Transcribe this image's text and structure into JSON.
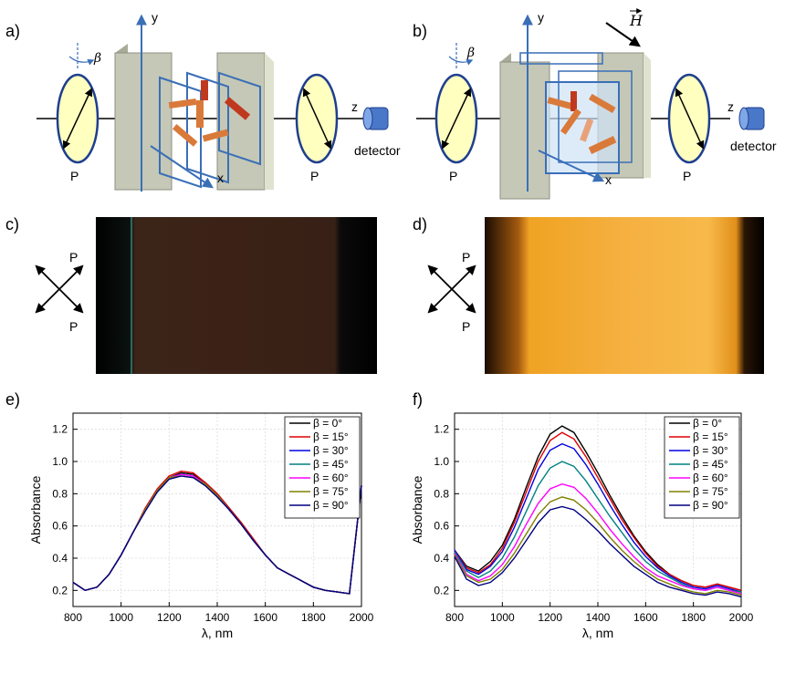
{
  "panels": {
    "a": {
      "label": "a)",
      "y_axis": "y",
      "z_axis": "z",
      "x_axis": "x",
      "beta": "β",
      "polarizer_left": "P",
      "polarizer_right": "P",
      "detector": "detector"
    },
    "b": {
      "label": "b)",
      "y_axis": "y",
      "z_axis": "z",
      "x_axis": "x",
      "beta": "β",
      "field": "H",
      "polarizer_left": "P",
      "polarizer_right": "P",
      "detector": "detector"
    },
    "c": {
      "label": "c)",
      "pol_top": "P",
      "pol_bottom": "P"
    },
    "d": {
      "label": "d)",
      "pol_top": "P",
      "pol_bottom": "P"
    },
    "e": {
      "label": "e)"
    },
    "f": {
      "label": "f)"
    }
  },
  "colors": {
    "polarizer_fill": "#ffffc0",
    "polarizer_stroke": "#1f3f8f",
    "axis_blue": "#3a6fb8",
    "rod": "#d97a3a",
    "rod_dark": "#c0391f",
    "plate": "#c5c8b6",
    "detector": "#4a78c8",
    "photo_c": "#3a1f14",
    "photo_d": "#f0a020"
  },
  "chart_data": [
    {
      "panel": "e",
      "type": "line",
      "xlabel": "λ, nm",
      "ylabel": "Absorbance",
      "xlim": [
        800,
        2000
      ],
      "ylim": [
        0.1,
        1.3
      ],
      "xticks": [
        800,
        1000,
        1200,
        1400,
        1600,
        1800,
        2000
      ],
      "yticks": [
        0.2,
        0.4,
        0.6,
        0.8,
        1.0,
        1.2
      ],
      "ytick_labels": [
        "0.2",
        "0.4",
        "0.6",
        "0.8",
        "1.0",
        "1.2"
      ],
      "grid": true,
      "legend_position": "top-right",
      "x": [
        800,
        850,
        900,
        950,
        1000,
        1050,
        1100,
        1150,
        1200,
        1250,
        1300,
        1350,
        1400,
        1450,
        1500,
        1550,
        1600,
        1650,
        1700,
        1750,
        1800,
        1850,
        1900,
        1950,
        2000
      ],
      "series": [
        {
          "name": "β = 0°",
          "color": "#000000",
          "values": [
            0.25,
            0.2,
            0.22,
            0.3,
            0.42,
            0.56,
            0.7,
            0.82,
            0.9,
            0.93,
            0.92,
            0.87,
            0.8,
            0.71,
            0.62,
            0.52,
            0.42,
            0.34,
            0.3,
            0.26,
            0.22,
            0.2,
            0.19,
            0.18,
            0.85
          ]
        },
        {
          "name": "β = 15°",
          "color": "#e00000",
          "values": [
            0.25,
            0.2,
            0.22,
            0.3,
            0.42,
            0.56,
            0.71,
            0.83,
            0.91,
            0.94,
            0.93,
            0.87,
            0.8,
            0.71,
            0.62,
            0.52,
            0.42,
            0.34,
            0.3,
            0.26,
            0.22,
            0.2,
            0.19,
            0.18,
            0.85
          ]
        },
        {
          "name": "β = 30°",
          "color": "#0000e0",
          "values": [
            0.25,
            0.2,
            0.22,
            0.3,
            0.42,
            0.56,
            0.7,
            0.82,
            0.9,
            0.92,
            0.91,
            0.86,
            0.79,
            0.7,
            0.61,
            0.51,
            0.42,
            0.34,
            0.3,
            0.26,
            0.22,
            0.2,
            0.19,
            0.18,
            0.85
          ]
        },
        {
          "name": "β = 45°",
          "color": "#008080",
          "values": [
            0.25,
            0.2,
            0.22,
            0.3,
            0.42,
            0.56,
            0.7,
            0.82,
            0.9,
            0.92,
            0.91,
            0.86,
            0.79,
            0.7,
            0.61,
            0.51,
            0.42,
            0.34,
            0.3,
            0.26,
            0.22,
            0.2,
            0.19,
            0.18,
            0.85
          ]
        },
        {
          "name": "β = 60°",
          "color": "#ff00ff",
          "values": [
            0.25,
            0.2,
            0.22,
            0.3,
            0.42,
            0.56,
            0.7,
            0.82,
            0.9,
            0.92,
            0.91,
            0.86,
            0.79,
            0.7,
            0.61,
            0.51,
            0.42,
            0.34,
            0.3,
            0.26,
            0.22,
            0.2,
            0.19,
            0.18,
            0.85
          ]
        },
        {
          "name": "β = 75°",
          "color": "#808000",
          "values": [
            0.25,
            0.2,
            0.22,
            0.3,
            0.42,
            0.56,
            0.7,
            0.82,
            0.9,
            0.91,
            0.9,
            0.86,
            0.79,
            0.7,
            0.61,
            0.51,
            0.42,
            0.34,
            0.3,
            0.26,
            0.22,
            0.2,
            0.19,
            0.18,
            0.85
          ]
        },
        {
          "name": "β = 90°",
          "color": "#000080",
          "values": [
            0.25,
            0.2,
            0.22,
            0.3,
            0.42,
            0.56,
            0.69,
            0.81,
            0.89,
            0.91,
            0.9,
            0.85,
            0.78,
            0.7,
            0.61,
            0.51,
            0.42,
            0.34,
            0.3,
            0.26,
            0.22,
            0.2,
            0.19,
            0.18,
            0.85
          ]
        }
      ]
    },
    {
      "panel": "f",
      "type": "line",
      "xlabel": "λ, nm",
      "ylabel": "Absorbance",
      "xlim": [
        800,
        2000
      ],
      "ylim": [
        0.1,
        1.3
      ],
      "xticks": [
        800,
        1000,
        1200,
        1400,
        1600,
        1800,
        2000
      ],
      "yticks": [
        0.2,
        0.4,
        0.6,
        0.8,
        1.0,
        1.2
      ],
      "ytick_labels": [
        "0.2",
        "0.4",
        "0.6",
        "0.8",
        "1.0",
        "1.2"
      ],
      "grid": true,
      "legend_position": "top-right",
      "x": [
        800,
        850,
        900,
        950,
        1000,
        1050,
        1100,
        1150,
        1200,
        1250,
        1300,
        1350,
        1400,
        1450,
        1500,
        1550,
        1600,
        1650,
        1700,
        1750,
        1800,
        1850,
        1900,
        1950,
        2000
      ],
      "series": [
        {
          "name": "β = 0°",
          "color": "#000000",
          "values": [
            0.45,
            0.35,
            0.32,
            0.38,
            0.48,
            0.64,
            0.84,
            1.03,
            1.17,
            1.22,
            1.18,
            1.06,
            0.93,
            0.79,
            0.66,
            0.54,
            0.44,
            0.36,
            0.3,
            0.26,
            0.23,
            0.22,
            0.24,
            0.22,
            0.2
          ]
        },
        {
          "name": "β = 15°",
          "color": "#e00000",
          "values": [
            0.45,
            0.34,
            0.31,
            0.36,
            0.46,
            0.62,
            0.81,
            1.0,
            1.13,
            1.18,
            1.14,
            1.03,
            0.9,
            0.77,
            0.64,
            0.53,
            0.43,
            0.35,
            0.3,
            0.26,
            0.23,
            0.22,
            0.24,
            0.22,
            0.2
          ]
        },
        {
          "name": "β = 30°",
          "color": "#0000e0",
          "values": [
            0.45,
            0.33,
            0.3,
            0.35,
            0.44,
            0.59,
            0.77,
            0.95,
            1.07,
            1.11,
            1.08,
            0.98,
            0.86,
            0.73,
            0.61,
            0.5,
            0.41,
            0.34,
            0.29,
            0.25,
            0.22,
            0.21,
            0.23,
            0.21,
            0.19
          ]
        },
        {
          "name": "β = 45°",
          "color": "#008080",
          "values": [
            0.44,
            0.32,
            0.28,
            0.32,
            0.4,
            0.53,
            0.69,
            0.85,
            0.96,
            1.0,
            0.97,
            0.88,
            0.77,
            0.66,
            0.56,
            0.46,
            0.38,
            0.32,
            0.28,
            0.24,
            0.21,
            0.2,
            0.22,
            0.2,
            0.19
          ]
        },
        {
          "name": "β = 60°",
          "color": "#ff00ff",
          "values": [
            0.43,
            0.3,
            0.26,
            0.29,
            0.36,
            0.47,
            0.61,
            0.74,
            0.83,
            0.86,
            0.84,
            0.77,
            0.68,
            0.58,
            0.49,
            0.41,
            0.34,
            0.29,
            0.26,
            0.23,
            0.21,
            0.2,
            0.22,
            0.2,
            0.18
          ]
        },
        {
          "name": "β = 75°",
          "color": "#808000",
          "values": [
            0.42,
            0.29,
            0.25,
            0.27,
            0.33,
            0.43,
            0.55,
            0.67,
            0.75,
            0.78,
            0.76,
            0.7,
            0.62,
            0.53,
            0.45,
            0.38,
            0.32,
            0.27,
            0.24,
            0.21,
            0.19,
            0.18,
            0.2,
            0.19,
            0.17
          ]
        },
        {
          "name": "β = 90°",
          "color": "#000080",
          "values": [
            0.41,
            0.27,
            0.23,
            0.25,
            0.31,
            0.4,
            0.51,
            0.62,
            0.7,
            0.72,
            0.7,
            0.64,
            0.57,
            0.49,
            0.42,
            0.35,
            0.3,
            0.25,
            0.22,
            0.2,
            0.18,
            0.17,
            0.19,
            0.18,
            0.16
          ]
        }
      ]
    }
  ]
}
